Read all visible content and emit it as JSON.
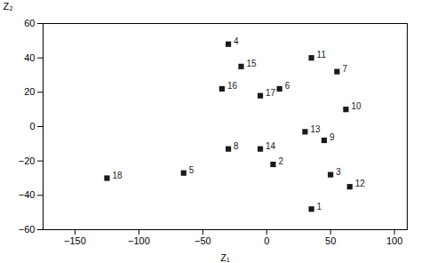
{
  "chart_data": {
    "type": "scatter",
    "x": [
      35,
      5,
      50,
      -30,
      -65,
      10,
      55,
      -30,
      45,
      62,
      35,
      65,
      30,
      -5,
      -20,
      -35,
      -5,
      -125
    ],
    "values": [
      -48,
      -22,
      -28,
      48,
      -27,
      22,
      32,
      -13,
      -8,
      10,
      40,
      -35,
      -3,
      -13,
      35,
      22,
      18,
      -30
    ],
    "labels": [
      "1",
      "2",
      "3",
      "4",
      "5",
      "6",
      "7",
      "8",
      "9",
      "10",
      "11",
      "12",
      "13",
      "14",
      "15",
      "16",
      "17",
      "18"
    ],
    "xlabel": "Z₁",
    "ylabel": "Z₂",
    "xlim": [
      -175,
      110
    ],
    "ylim": [
      -60,
      60
    ],
    "xticks": [
      -150,
      -100,
      -50,
      0,
      50,
      100
    ],
    "yticks": [
      -60,
      -40,
      -20,
      0,
      20,
      40,
      60
    ],
    "color": "#1a1a1a",
    "marker": "square"
  }
}
